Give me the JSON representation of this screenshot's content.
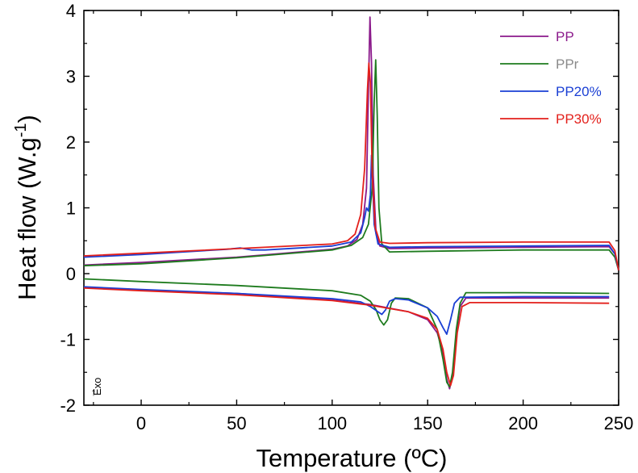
{
  "chart_data": {
    "type": "line",
    "title": "",
    "xlabel": "Temperature (ºC)",
    "ylabel": "Heat flow (W.g-1)",
    "ylabel_base": "Heat flow (W.g",
    "ylabel_sup": "-1",
    "ylabel_end": ")",
    "xlim": [
      -30,
      250
    ],
    "ylim": [
      -2,
      4
    ],
    "x_ticks": [
      0,
      50,
      100,
      150,
      200,
      250
    ],
    "x_tick_labels": [
      "0",
      "50",
      "100",
      "150",
      "200",
      "250"
    ],
    "y_ticks": [
      -2,
      -1,
      0,
      1,
      2,
      3,
      4
    ],
    "y_tick_labels": [
      "-2",
      "-1",
      "0",
      "1",
      "2",
      "3",
      "4"
    ],
    "grid": false,
    "legend_position": "top-right",
    "annotation": {
      "arrow": "↑",
      "text": "Exo"
    },
    "series": [
      {
        "name": "PP",
        "color": "#8b1a8b",
        "label_color": "#8b1a8b",
        "cooling": [
          [
            -30,
            0.13
          ],
          [
            0,
            0.17
          ],
          [
            50,
            0.25
          ],
          [
            100,
            0.37
          ],
          [
            108,
            0.42
          ],
          [
            113,
            0.52
          ],
          [
            116,
            0.75
          ],
          [
            118,
            1.3
          ],
          [
            119,
            2.8
          ],
          [
            119.8,
            3.9
          ],
          [
            120.6,
            3.2
          ],
          [
            121.5,
            1.5
          ],
          [
            123,
            0.6
          ],
          [
            125,
            0.42
          ],
          [
            130,
            0.38
          ],
          [
            150,
            0.39
          ],
          [
            200,
            0.4
          ],
          [
            245,
            0.41
          ],
          [
            248,
            0.3
          ],
          [
            250,
            0.05
          ]
        ],
        "heating": [
          [
            -30,
            -0.21
          ],
          [
            0,
            -0.25
          ],
          [
            50,
            -0.3
          ],
          [
            100,
            -0.4
          ],
          [
            120,
            -0.47
          ],
          [
            140,
            -0.58
          ],
          [
            150,
            -0.7
          ],
          [
            155,
            -0.9
          ],
          [
            158,
            -1.2
          ],
          [
            160,
            -1.6
          ],
          [
            161.5,
            -1.75
          ],
          [
            163,
            -1.55
          ],
          [
            165,
            -0.9
          ],
          [
            167,
            -0.5
          ],
          [
            170,
            -0.37
          ],
          [
            200,
            -0.37
          ],
          [
            245,
            -0.37
          ]
        ]
      },
      {
        "name": "PPr",
        "color": "#1e7b1e",
        "label_color": "#8a8a8a",
        "cooling": [
          [
            -30,
            0.12
          ],
          [
            0,
            0.15
          ],
          [
            50,
            0.24
          ],
          [
            100,
            0.36
          ],
          [
            110,
            0.43
          ],
          [
            116,
            0.55
          ],
          [
            119,
            0.75
          ],
          [
            121,
            1.3
          ],
          [
            122,
            2.6
          ],
          [
            122.8,
            3.25
          ],
          [
            123.6,
            2.4
          ],
          [
            124.5,
            1.0
          ],
          [
            126,
            0.45
          ],
          [
            130,
            0.33
          ],
          [
            150,
            0.34
          ],
          [
            200,
            0.36
          ],
          [
            245,
            0.36
          ],
          [
            248,
            0.25
          ],
          [
            250,
            0.05
          ]
        ],
        "heating": [
          [
            -30,
            -0.08
          ],
          [
            0,
            -0.12
          ],
          [
            50,
            -0.18
          ],
          [
            100,
            -0.26
          ],
          [
            115,
            -0.33
          ],
          [
            120,
            -0.42
          ],
          [
            123,
            -0.55
          ],
          [
            125,
            -0.7
          ],
          [
            127,
            -0.78
          ],
          [
            129,
            -0.7
          ],
          [
            131,
            -0.45
          ],
          [
            133,
            -0.37
          ],
          [
            140,
            -0.38
          ],
          [
            150,
            -0.52
          ],
          [
            155,
            -0.85
          ],
          [
            158,
            -1.3
          ],
          [
            160,
            -1.65
          ],
          [
            161.5,
            -1.72
          ],
          [
            163,
            -1.5
          ],
          [
            165,
            -0.85
          ],
          [
            167,
            -0.45
          ],
          [
            170,
            -0.29
          ],
          [
            200,
            -0.29
          ],
          [
            245,
            -0.3
          ]
        ]
      },
      {
        "name": "PP20%",
        "color": "#1a3fd4",
        "label_color": "#1a3fd4",
        "cooling": [
          [
            -30,
            0.25
          ],
          [
            0,
            0.29
          ],
          [
            45,
            0.37
          ],
          [
            52,
            0.39
          ],
          [
            58,
            0.36
          ],
          [
            65,
            0.36
          ],
          [
            100,
            0.42
          ],
          [
            110,
            0.48
          ],
          [
            115,
            0.62
          ],
          [
            117,
            0.85
          ],
          [
            118,
            1.0
          ],
          [
            119,
            0.95
          ],
          [
            120,
            1.2
          ],
          [
            120.6,
            1.8
          ],
          [
            121.3,
            1.3
          ],
          [
            122,
            0.75
          ],
          [
            124,
            0.45
          ],
          [
            130,
            0.4
          ],
          [
            150,
            0.41
          ],
          [
            200,
            0.42
          ],
          [
            245,
            0.43
          ],
          [
            248,
            0.3
          ],
          [
            250,
            0.05
          ]
        ],
        "heating": [
          [
            -30,
            -0.2
          ],
          [
            0,
            -0.24
          ],
          [
            50,
            -0.3
          ],
          [
            100,
            -0.38
          ],
          [
            115,
            -0.43
          ],
          [
            120,
            -0.5
          ],
          [
            124,
            -0.58
          ],
          [
            126,
            -0.62
          ],
          [
            128,
            -0.55
          ],
          [
            130,
            -0.42
          ],
          [
            133,
            -0.38
          ],
          [
            140,
            -0.4
          ],
          [
            150,
            -0.52
          ],
          [
            155,
            -0.65
          ],
          [
            158,
            -0.82
          ],
          [
            160,
            -0.92
          ],
          [
            162,
            -0.7
          ],
          [
            164,
            -0.45
          ],
          [
            167,
            -0.36
          ],
          [
            200,
            -0.35
          ],
          [
            245,
            -0.35
          ]
        ]
      },
      {
        "name": "PP30%",
        "color": "#e3201b",
        "label_color": "#e3201b",
        "cooling": [
          [
            -30,
            0.27
          ],
          [
            0,
            0.31
          ],
          [
            50,
            0.38
          ],
          [
            100,
            0.45
          ],
          [
            108,
            0.5
          ],
          [
            112,
            0.6
          ],
          [
            115,
            0.9
          ],
          [
            117,
            1.6
          ],
          [
            118.5,
            2.8
          ],
          [
            119.2,
            3.2
          ],
          [
            120,
            2.9
          ],
          [
            121,
            1.5
          ],
          [
            122.5,
            0.7
          ],
          [
            125,
            0.48
          ],
          [
            130,
            0.46
          ],
          [
            150,
            0.47
          ],
          [
            200,
            0.48
          ],
          [
            245,
            0.48
          ],
          [
            248,
            0.35
          ],
          [
            250,
            0.05
          ]
        ],
        "heating": [
          [
            -30,
            -0.22
          ],
          [
            0,
            -0.26
          ],
          [
            50,
            -0.32
          ],
          [
            100,
            -0.41
          ],
          [
            120,
            -0.48
          ],
          [
            140,
            -0.58
          ],
          [
            150,
            -0.68
          ],
          [
            155,
            -0.85
          ],
          [
            158,
            -1.15
          ],
          [
            160,
            -1.5
          ],
          [
            162,
            -1.7
          ],
          [
            163.5,
            -1.55
          ],
          [
            165.5,
            -0.9
          ],
          [
            168,
            -0.5
          ],
          [
            172,
            -0.44
          ],
          [
            200,
            -0.44
          ],
          [
            245,
            -0.45
          ]
        ]
      }
    ]
  }
}
